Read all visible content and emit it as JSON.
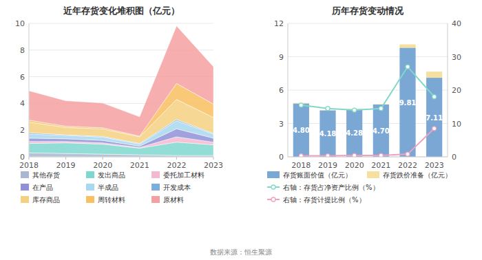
{
  "chart_data": [
    {
      "type": "area",
      "stacked": true,
      "title": "近年存货变化堆积图（亿元）",
      "x": [
        2018,
        2019,
        2020,
        2021,
        2022,
        2023
      ],
      "xlim": [
        2018,
        2023
      ],
      "xticks": [
        2018,
        2019,
        2020,
        2021,
        2022,
        2023
      ],
      "ylim": [
        0,
        10
      ],
      "yticks": [
        0,
        2,
        4,
        6,
        8,
        10
      ],
      "grid": true,
      "series": [
        {
          "name": "其他存货",
          "color": "#a8b8d0",
          "values": [
            0.3,
            0.25,
            0.2,
            0.15,
            0.1,
            0.1
          ]
        },
        {
          "name": "发出商品",
          "color": "#7fd8d0",
          "values": [
            0.7,
            0.8,
            0.75,
            0.5,
            1.0,
            0.8
          ]
        },
        {
          "name": "委托加工材料",
          "color": "#f4b8d0",
          "values": [
            0.15,
            0.1,
            0.1,
            0.05,
            0.4,
            0.2
          ]
        },
        {
          "name": "在产品",
          "color": "#9090d8",
          "values": [
            0.25,
            0.2,
            0.18,
            0.1,
            0.6,
            0.3
          ]
        },
        {
          "name": "半成品",
          "color": "#a8d8f0",
          "values": [
            0.3,
            0.25,
            0.25,
            0.15,
            0.6,
            0.3
          ]
        },
        {
          "name": "开发成本",
          "color": "#7aaedc",
          "values": [
            0.1,
            0.05,
            0.05,
            0.05,
            0.1,
            0.05
          ]
        },
        {
          "name": "库存商品",
          "color": "#f5d080",
          "values": [
            0.8,
            0.55,
            0.55,
            0.5,
            1.5,
            1.2
          ]
        },
        {
          "name": "周转材料",
          "color": "#f8c060",
          "values": [
            0.15,
            0.1,
            0.1,
            0.05,
            1.2,
            1.0
          ]
        },
        {
          "name": "原材料",
          "color": "#f4a0a0",
          "values": [
            2.2,
            1.9,
            1.85,
            1.45,
            4.31,
            2.8
          ]
        }
      ]
    },
    {
      "type": "bar",
      "stacked": true,
      "title": "历年存货变动情况",
      "categories": [
        "2018",
        "2019",
        "2020",
        "2021",
        "2022",
        "2023"
      ],
      "ylim": [
        0,
        12
      ],
      "yticks": [
        0,
        3,
        6,
        9,
        12
      ],
      "y2lim": [
        0,
        40
      ],
      "y2ticks": [
        0,
        10,
        20,
        30,
        40
      ],
      "grid": true,
      "series": [
        {
          "name": "存货账面价值（亿元）",
          "type": "bar",
          "color": "#7ba7d4",
          "values": [
            4.8,
            4.18,
            4.28,
            4.7,
            9.81,
            7.11
          ],
          "data_labels": true,
          "value_labels": [
            "4.80",
            "4.18",
            "4.28",
            "4.70",
            "9.81",
            "7.11"
          ]
        },
        {
          "name": "存货跌价准备（亿元）",
          "type": "bar",
          "color": "#f5e0a0",
          "values": [
            0.05,
            0.04,
            0.04,
            0.04,
            0.3,
            0.55
          ]
        },
        {
          "name": "右轴：存货占净资产比例（%）",
          "type": "line",
          "axis": "y2",
          "color": "#7fd8c8",
          "marker": "circle",
          "values": [
            15.5,
            14.5,
            14.0,
            14.5,
            27.0,
            18.0
          ]
        },
        {
          "name": "右轴：存货计提比例（%）",
          "type": "line",
          "axis": "y2",
          "color": "#f0a0c0",
          "marker": "circle",
          "values": [
            0.3,
            0.3,
            0.4,
            0.4,
            0.8,
            8.5
          ]
        }
      ]
    }
  ],
  "footer": "数据来源：恒生聚源"
}
